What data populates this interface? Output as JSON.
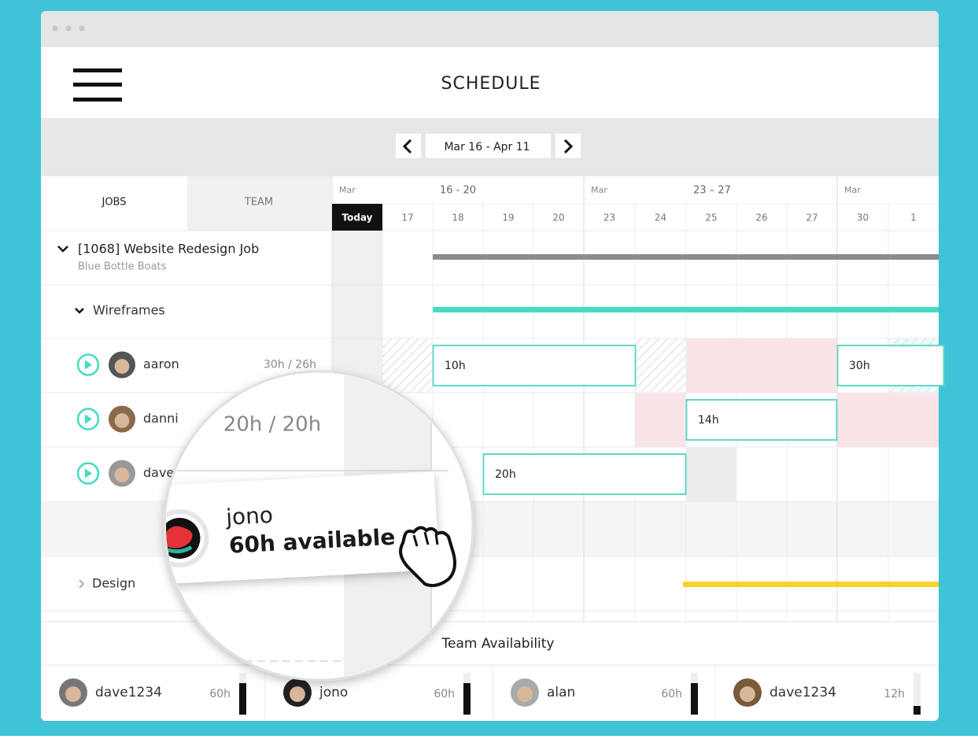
{
  "header": {
    "title": "SCHEDULE"
  },
  "nav": {
    "range": "Mar 16 - Apr 11"
  },
  "tabs": [
    "JOBS",
    "TEAM"
  ],
  "timeline": {
    "weeks": [
      {
        "month": "Mar",
        "range": "16 - 20"
      },
      {
        "month": "Mar",
        "range": "23 – 27"
      },
      {
        "month": "Mar"
      }
    ],
    "days": [
      "Today",
      "17",
      "18",
      "19",
      "20",
      "23",
      "24",
      "25",
      "26",
      "27",
      "30",
      "1"
    ]
  },
  "job": {
    "title": "[1068] Website Redesign Job",
    "client": "Blue Bottle Boats"
  },
  "phases": [
    "Wireframes",
    "Design"
  ],
  "people": [
    {
      "name": "aaron",
      "hours": "30h / 26h"
    },
    {
      "name": "danni"
    },
    {
      "name": "dave"
    }
  ],
  "tasks": [
    "10h",
    "30h",
    "14h",
    "20h"
  ],
  "magnifier": {
    "hours": "20h / 20h",
    "name": "jono",
    "available": "60h available"
  },
  "availability": {
    "title": "Team Availability",
    "members": [
      {
        "name": "dave1234",
        "hours": "60h"
      },
      {
        "name": "jono",
        "hours": "60h"
      },
      {
        "name": "alan",
        "hours": "60h"
      },
      {
        "name": "dave1234",
        "hours": "12h"
      }
    ]
  }
}
